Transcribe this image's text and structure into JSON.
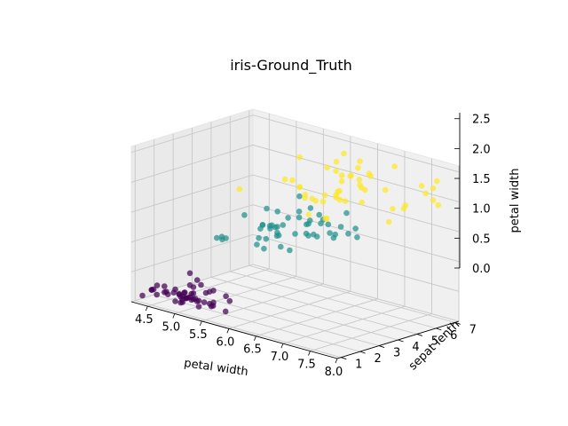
{
  "chart_data": {
    "type": "scatter3d",
    "title": "iris-Ground_Truth",
    "xlabel": "petal width",
    "ylabel": "sepat lenth",
    "zlabel": "petal width",
    "xlim": [
      4.2,
      8.0
    ],
    "ylim": [
      0.8,
      7.2
    ],
    "zlim": [
      0.0,
      2.6
    ],
    "xticks": [
      "4.5",
      "5.0",
      "5.5",
      "6.0",
      "6.5",
      "7.0",
      "7.5",
      "8.0"
    ],
    "yticks": [
      "1",
      "2",
      "3",
      "4",
      "5",
      "6",
      "7"
    ],
    "zticks": [
      "0.0",
      "0.5",
      "1.0",
      "1.5",
      "2.0",
      "2.5"
    ],
    "grid": true,
    "colors": [
      "#440154",
      "#21918c",
      "#fde725"
    ],
    "series": [
      {
        "x": [
          5.1,
          4.9,
          4.7,
          4.6,
          5.0,
          5.4,
          4.6,
          5.0,
          4.4,
          4.9,
          5.4,
          4.8,
          4.8,
          4.3,
          5.8,
          5.7,
          5.4,
          5.1,
          5.7,
          5.1,
          5.4,
          5.1,
          4.6,
          5.1,
          4.8,
          5.0,
          5.0,
          5.2,
          5.2,
          4.7,
          4.8,
          5.4,
          5.2,
          5.5,
          4.9,
          5.0,
          5.5,
          4.9,
          4.4,
          5.1,
          5.0,
          4.5,
          4.4,
          5.0,
          5.1,
          4.8,
          5.1,
          4.6,
          5.3,
          5.0
        ],
        "y": [
          1.4,
          1.4,
          1.3,
          1.5,
          1.4,
          1.7,
          1.4,
          1.5,
          1.4,
          1.5,
          1.5,
          1.6,
          1.4,
          1.1,
          1.2,
          1.5,
          1.3,
          1.4,
          1.7,
          1.5,
          1.7,
          1.5,
          1.0,
          1.7,
          1.9,
          1.6,
          1.6,
          1.5,
          1.4,
          1.6,
          1.6,
          1.5,
          1.5,
          1.4,
          1.5,
          1.2,
          1.3,
          1.4,
          1.3,
          1.5,
          1.3,
          1.3,
          1.3,
          1.6,
          1.9,
          1.4,
          1.6,
          1.4,
          1.5,
          1.4
        ],
        "z": [
          0.2,
          0.2,
          0.2,
          0.2,
          0.2,
          0.4,
          0.3,
          0.2,
          0.2,
          0.1,
          0.2,
          0.2,
          0.1,
          0.1,
          0.2,
          0.4,
          0.4,
          0.3,
          0.3,
          0.3,
          0.2,
          0.4,
          0.2,
          0.5,
          0.2,
          0.2,
          0.4,
          0.2,
          0.2,
          0.2,
          0.2,
          0.4,
          0.1,
          0.2,
          0.2,
          0.2,
          0.2,
          0.1,
          0.2,
          0.2,
          0.3,
          0.3,
          0.2,
          0.6,
          0.4,
          0.3,
          0.2,
          0.2,
          0.2,
          0.2
        ]
      },
      {
        "x": [
          7.0,
          6.4,
          6.9,
          5.5,
          6.5,
          5.7,
          6.3,
          4.9,
          6.6,
          5.2,
          5.0,
          5.9,
          6.0,
          6.1,
          5.6,
          6.7,
          5.6,
          5.8,
          6.2,
          5.6,
          5.9,
          6.1,
          6.3,
          6.1,
          6.4,
          6.6,
          6.8,
          6.7,
          6.0,
          5.7,
          5.5,
          5.5,
          5.8,
          6.0,
          5.4,
          6.0,
          6.7,
          6.3,
          5.6,
          5.5,
          5.5,
          6.1,
          5.8,
          5.0,
          5.6,
          5.7,
          5.7,
          6.2,
          5.1,
          5.7
        ],
        "y": [
          4.7,
          4.5,
          4.9,
          4.0,
          4.6,
          4.5,
          4.7,
          3.3,
          4.6,
          3.9,
          3.5,
          4.2,
          4.0,
          4.7,
          3.6,
          4.4,
          4.5,
          4.1,
          4.5,
          3.9,
          4.8,
          4.0,
          4.9,
          4.7,
          4.3,
          4.4,
          4.8,
          5.0,
          4.5,
          3.5,
          3.8,
          3.7,
          3.9,
          5.1,
          4.5,
          4.5,
          4.7,
          4.4,
          4.1,
          4.0,
          4.4,
          4.6,
          4.0,
          3.3,
          4.2,
          4.2,
          4.2,
          4.3,
          3.0,
          4.1
        ],
        "z": [
          1.4,
          1.5,
          1.5,
          1.3,
          1.5,
          1.3,
          1.6,
          1.0,
          1.3,
          1.4,
          1.0,
          1.5,
          1.0,
          1.4,
          1.3,
          1.4,
          1.5,
          1.0,
          1.5,
          1.1,
          1.8,
          1.3,
          1.5,
          1.2,
          1.3,
          1.4,
          1.4,
          1.7,
          1.5,
          1.0,
          1.1,
          1.0,
          1.2,
          1.6,
          1.5,
          1.6,
          1.5,
          1.3,
          1.3,
          1.3,
          1.2,
          1.4,
          1.2,
          1.0,
          1.3,
          1.2,
          1.3,
          1.3,
          1.1,
          1.3
        ]
      },
      {
        "x": [
          6.3,
          5.8,
          7.1,
          6.3,
          6.5,
          7.6,
          4.9,
          7.3,
          6.7,
          7.2,
          6.5,
          6.4,
          6.8,
          5.7,
          5.8,
          6.4,
          6.5,
          7.7,
          7.7,
          6.0,
          6.9,
          5.6,
          7.7,
          6.3,
          6.7,
          7.2,
          6.2,
          6.1,
          6.4,
          7.2,
          7.4,
          7.9,
          6.4,
          6.3,
          6.1,
          7.7,
          6.3,
          6.4,
          6.0,
          6.9,
          6.7,
          6.9,
          5.8,
          6.8,
          6.7,
          6.7,
          6.3,
          6.5,
          6.2,
          5.9
        ],
        "y": [
          6.0,
          5.1,
          5.9,
          5.6,
          5.8,
          6.6,
          4.5,
          6.3,
          5.8,
          6.1,
          5.1,
          5.3,
          5.5,
          5.0,
          5.1,
          5.3,
          5.5,
          6.7,
          6.9,
          5.0,
          5.7,
          4.9,
          6.7,
          4.9,
          5.7,
          6.0,
          4.8,
          4.9,
          5.6,
          5.8,
          6.1,
          6.4,
          5.6,
          5.1,
          5.6,
          6.1,
          5.6,
          5.5,
          4.8,
          5.4,
          5.6,
          5.1,
          5.1,
          5.9,
          5.7,
          5.2,
          5.0,
          5.2,
          5.4,
          5.1
        ],
        "z": [
          2.5,
          1.9,
          2.1,
          1.8,
          2.2,
          2.1,
          1.7,
          1.8,
          1.8,
          2.5,
          2.0,
          1.9,
          2.1,
          2.0,
          2.4,
          2.3,
          1.8,
          2.2,
          2.3,
          1.5,
          2.3,
          2.0,
          2.0,
          1.8,
          2.1,
          1.8,
          1.8,
          1.8,
          2.1,
          1.6,
          1.9,
          2.0,
          2.2,
          1.5,
          1.4,
          2.3,
          2.4,
          1.8,
          1.8,
          2.1,
          2.4,
          2.3,
          1.9,
          2.3,
          2.5,
          2.3,
          1.9,
          2.0,
          2.3,
          1.8
        ]
      }
    ]
  }
}
